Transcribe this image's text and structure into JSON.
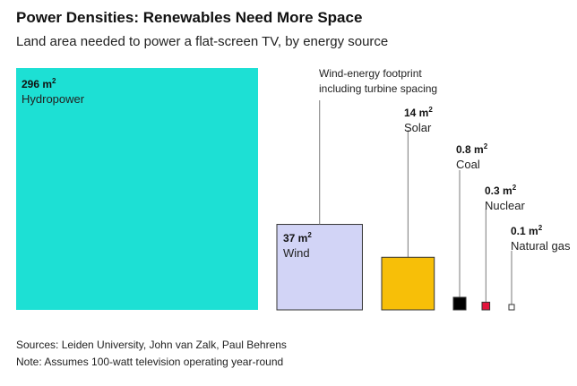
{
  "title": "Power Densities: Renewables Need More Space",
  "subtitle": "Land area needed to power a flat-screen TV, by energy source",
  "sources": "Sources: Leiden University, John van Zalk, Paul Behrens",
  "note": "Note: Assumes 100-watt television operating year-round",
  "annotation": [
    "Wind-energy footprint",
    "including turbine spacing"
  ],
  "chart_data": {
    "type": "area",
    "unit": "m²",
    "items": [
      {
        "label": "Hydropower",
        "value": 296,
        "value_label": "296 m",
        "color": "#1de0d4"
      },
      {
        "label": "Wind",
        "value": 37,
        "value_label": "37 m",
        "color": "#d2d4f6"
      },
      {
        "label": "Solar",
        "value": 14,
        "value_label": "14 m",
        "color": "#f7bf08"
      },
      {
        "label": "Coal",
        "value": 0.8,
        "value_label": "0.8 m",
        "color": "#000000"
      },
      {
        "label": "Nuclear",
        "value": 0.3,
        "value_label": "0.3 m",
        "color": "#e3143c"
      },
      {
        "label": "Natural gas",
        "value": 0.1,
        "value_label": "0.1 m",
        "color": "#ffffff"
      }
    ]
  }
}
